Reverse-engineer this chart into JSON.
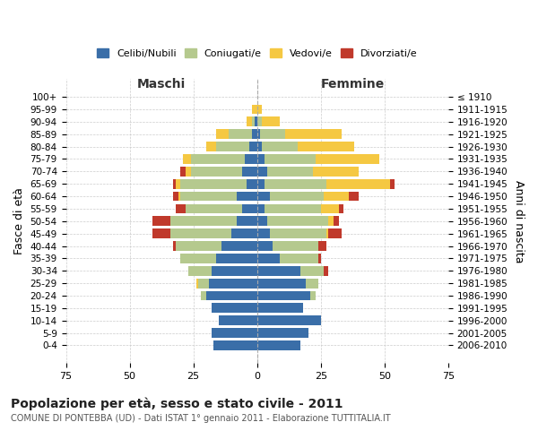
{
  "age_groups": [
    "0-4",
    "5-9",
    "10-14",
    "15-19",
    "20-24",
    "25-29",
    "30-34",
    "35-39",
    "40-44",
    "45-49",
    "50-54",
    "55-59",
    "60-64",
    "65-69",
    "70-74",
    "75-79",
    "80-84",
    "85-89",
    "90-94",
    "95-99",
    "100+"
  ],
  "birth_years": [
    "2006-2010",
    "2001-2005",
    "1996-2000",
    "1991-1995",
    "1986-1990",
    "1981-1985",
    "1976-1980",
    "1971-1975",
    "1966-1970",
    "1961-1965",
    "1956-1960",
    "1951-1955",
    "1946-1950",
    "1941-1945",
    "1936-1940",
    "1931-1935",
    "1926-1930",
    "1921-1925",
    "1916-1920",
    "1911-1915",
    "≤ 1910"
  ],
  "maschi": {
    "celibi": [
      17,
      18,
      15,
      18,
      20,
      19,
      18,
      16,
      14,
      10,
      8,
      6,
      8,
      4,
      6,
      5,
      3,
      2,
      1,
      0,
      0
    ],
    "coniugati": [
      0,
      0,
      0,
      0,
      2,
      4,
      9,
      14,
      18,
      24,
      26,
      22,
      22,
      26,
      20,
      21,
      13,
      9,
      1,
      0,
      0
    ],
    "vedovi": [
      0,
      0,
      0,
      0,
      0,
      1,
      0,
      0,
      0,
      0,
      0,
      0,
      1,
      2,
      2,
      3,
      4,
      5,
      2,
      2,
      0
    ],
    "divorziati": [
      0,
      0,
      0,
      0,
      0,
      0,
      0,
      0,
      1,
      7,
      7,
      4,
      2,
      1,
      2,
      0,
      0,
      0,
      0,
      0,
      0
    ]
  },
  "femmine": {
    "nubili": [
      17,
      20,
      25,
      18,
      21,
      19,
      17,
      9,
      6,
      5,
      4,
      3,
      5,
      3,
      4,
      3,
      2,
      1,
      0,
      0,
      0
    ],
    "coniugate": [
      0,
      0,
      0,
      0,
      2,
      5,
      9,
      15,
      18,
      22,
      24,
      22,
      21,
      24,
      18,
      20,
      14,
      10,
      2,
      0,
      0
    ],
    "vedove": [
      0,
      0,
      0,
      0,
      0,
      0,
      0,
      0,
      0,
      1,
      2,
      7,
      10,
      25,
      18,
      25,
      22,
      22,
      7,
      2,
      0
    ],
    "divorziate": [
      0,
      0,
      0,
      0,
      0,
      0,
      2,
      1,
      3,
      5,
      2,
      2,
      4,
      2,
      0,
      0,
      0,
      0,
      0,
      0,
      0
    ]
  },
  "colors": {
    "celibi_nubili": "#3a6ea8",
    "coniugati": "#b5c98e",
    "vedovi": "#f5c842",
    "divorziati": "#c0392b"
  },
  "xlim": 75,
  "title": "Popolazione per età, sesso e stato civile - 2011",
  "subtitle": "COMUNE DI PONTEBBA (UD) - Dati ISTAT 1° gennaio 2011 - Elaborazione TUTTITALIA.IT",
  "ylabel_left": "Fasce di età",
  "ylabel_right": "Anni di nascita",
  "xlabel_left": "Maschi",
  "xlabel_right": "Femmine",
  "legend_labels": [
    "Celibi/Nubili",
    "Coniugati/e",
    "Vedovi/e",
    "Divorziati/e"
  ],
  "background_color": "#ffffff",
  "grid_color": "#cccccc"
}
